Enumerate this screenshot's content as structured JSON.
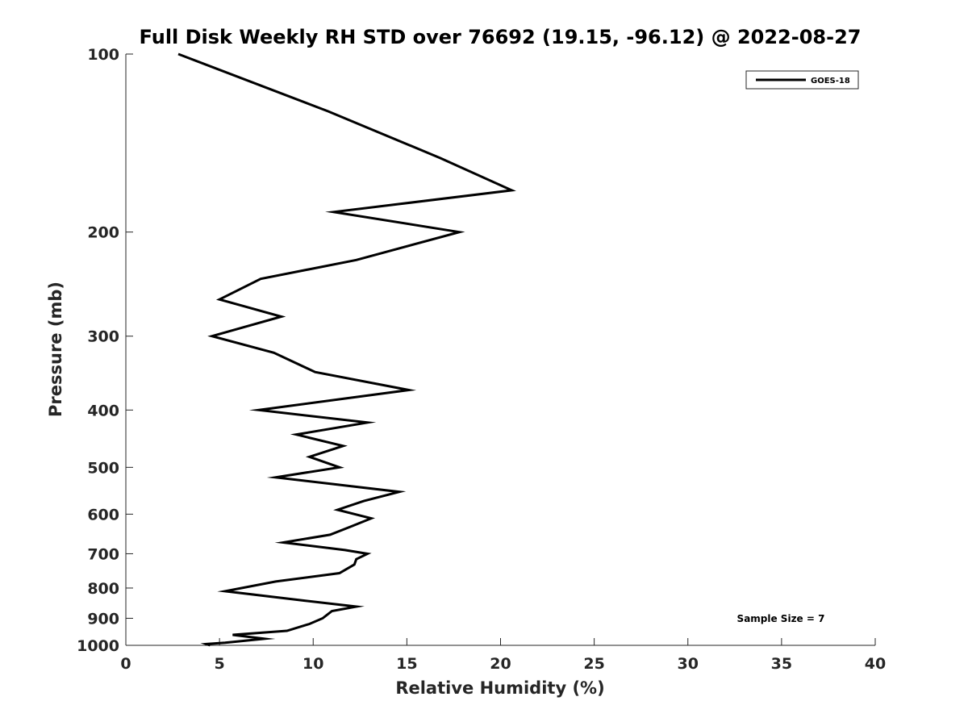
{
  "chart_data": {
    "type": "line",
    "title": "Full Disk Weekly RH STD over 76692 (19.15, -96.12) @ 2022-08-27",
    "xlabel": "Relative Humidity (%)",
    "ylabel": "Pressure (mb)",
    "xlim": [
      0,
      40
    ],
    "ylim": [
      100,
      1000
    ],
    "y_scale": "log",
    "y_reversed": true,
    "x_ticks": [
      0,
      5,
      10,
      15,
      20,
      25,
      30,
      35,
      40
    ],
    "y_ticks": [
      100,
      200,
      300,
      400,
      500,
      600,
      700,
      800,
      900,
      1000
    ],
    "grid": false,
    "legend_position": "top-right",
    "annotation": "Sample Size = 7",
    "series": [
      {
        "name": "GOES-18",
        "color": "#000000",
        "x": [
          2.8,
          10.8,
          16.8,
          20.6,
          11.1,
          17.8,
          12.3,
          7.2,
          5.0,
          8.3,
          4.6,
          7.9,
          10.1,
          15.1,
          7.1,
          12.9,
          9.1,
          11.6,
          9.8,
          11.4,
          8.0,
          14.6,
          12.7,
          11.3,
          13.1,
          12.0,
          10.9,
          8.4,
          11.7,
          12.9,
          12.3,
          12.2,
          11.4,
          8.0,
          5.3,
          9.5,
          12.3,
          11.0,
          10.5,
          9.8,
          8.6,
          5.7,
          7.4,
          5.3,
          4.3,
          4.5
        ],
        "y": [
          100,
          125,
          150,
          170,
          185,
          200,
          223,
          240,
          260,
          278,
          300,
          320,
          345,
          370,
          400,
          420,
          440,
          460,
          480,
          500,
          520,
          550,
          570,
          590,
          610,
          630,
          650,
          670,
          690,
          700,
          715,
          730,
          755,
          780,
          810,
          840,
          860,
          875,
          900,
          920,
          945,
          960,
          975,
          990,
          995,
          1000
        ]
      }
    ]
  }
}
